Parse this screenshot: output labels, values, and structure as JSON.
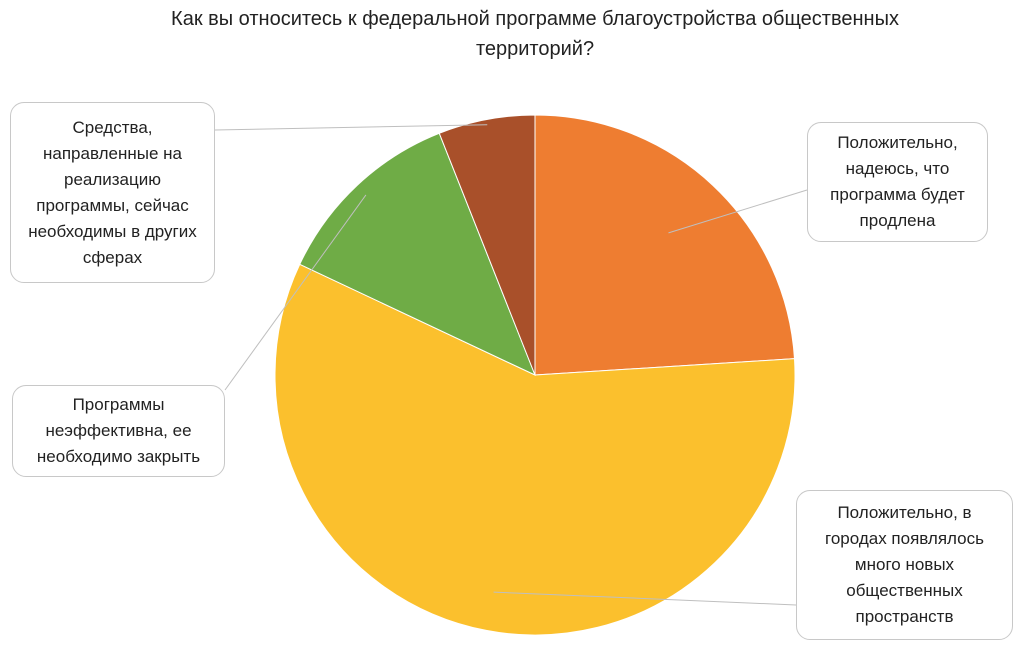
{
  "chart_data": {
    "type": "pie",
    "title": "Как вы относитесь к федеральной программе благоустройства общественных территорий?",
    "categories": [
      "Положительно, надеюсь, что программа будет продлена",
      "Положительно, в городах появлялось много новых общественных пространств",
      "Программы неэффективна, ее необходимо закрыть",
      "Средства, направленные на реализацию программы, сейчас необходимы в других сферах"
    ],
    "values": [
      24,
      58,
      12,
      6
    ],
    "colors": [
      "#ee7d31",
      "#fbc02d",
      "#6fac46",
      "#a9502a"
    ]
  }
}
